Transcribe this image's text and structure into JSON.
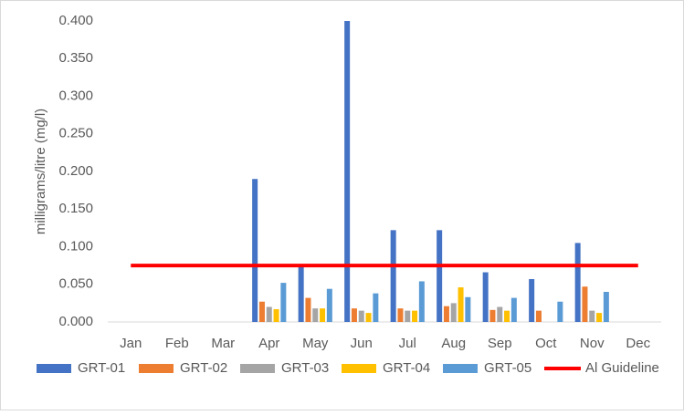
{
  "chart_data": {
    "type": "bar",
    "y_label": "milligrams/litre (mg/l)",
    "categories": [
      "Jan",
      "Feb",
      "Mar",
      "Apr",
      "May",
      "Jun",
      "Jul",
      "Aug",
      "Sep",
      "Oct",
      "Nov",
      "Dec"
    ],
    "series": [
      {
        "name": "GRT-01",
        "color": "#4472c4",
        "values": [
          null,
          null,
          null,
          0.19,
          0.075,
          0.4,
          0.122,
          0.122,
          0.066,
          0.057,
          0.105,
          null
        ]
      },
      {
        "name": "GRT-02",
        "color": "#ed7d31",
        "values": [
          null,
          null,
          null,
          0.027,
          0.032,
          0.018,
          0.018,
          0.021,
          0.016,
          0.015,
          0.047,
          null
        ]
      },
      {
        "name": "GRT-03",
        "color": "#a5a5a5",
        "values": [
          null,
          null,
          null,
          0.02,
          0.018,
          0.015,
          0.015,
          0.025,
          0.02,
          null,
          0.015,
          null
        ]
      },
      {
        "name": "GRT-04",
        "color": "#ffc000",
        "values": [
          null,
          null,
          null,
          0.017,
          0.018,
          0.012,
          0.015,
          0.046,
          0.015,
          null,
          0.012,
          null
        ]
      },
      {
        "name": "GRT-05",
        "color": "#5b9bd5",
        "values": [
          null,
          null,
          null,
          0.052,
          0.044,
          0.038,
          0.054,
          0.033,
          0.032,
          0.027,
          0.04,
          null
        ]
      },
      {
        "name": "Al Guideline",
        "color": "#ff0000",
        "type": "line",
        "values": [
          0.075,
          0.075,
          0.075,
          0.075,
          0.075,
          0.075,
          0.075,
          0.075,
          0.075,
          0.075,
          0.075,
          0.075
        ]
      }
    ],
    "ylim": [
      0,
      0.4
    ],
    "yticks": [
      {
        "value": 0,
        "label": "0.000"
      },
      {
        "value": 0.05,
        "label": "0.050"
      },
      {
        "value": 0.1,
        "label": "0.100"
      },
      {
        "value": 0.15,
        "label": "0.150"
      },
      {
        "value": 0.2,
        "label": "0.200"
      },
      {
        "value": 0.25,
        "label": "0.250"
      },
      {
        "value": 0.3,
        "label": "0.300"
      },
      {
        "value": 0.35,
        "label": "0.350"
      },
      {
        "value": 0.4,
        "label": "0.400"
      }
    ],
    "grid": false,
    "legend": "bottom"
  }
}
